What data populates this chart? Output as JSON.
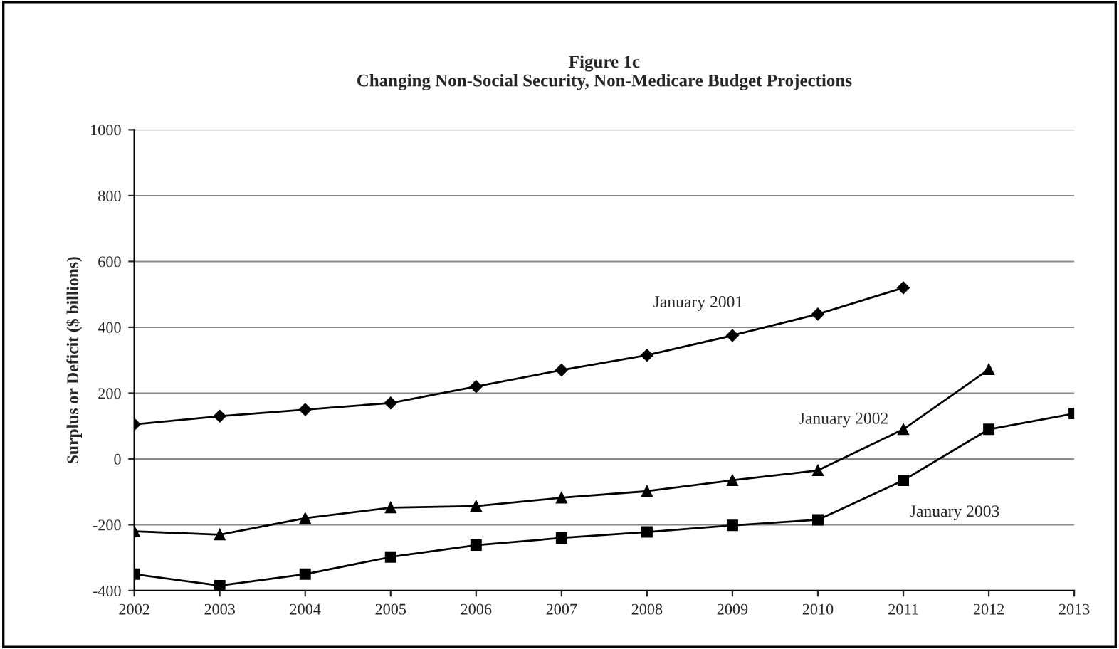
{
  "chart_data": {
    "type": "line",
    "title": "Figure 1c\nChanging Non-Social Security, Non-Medicare Budget Projections",
    "ylabel": "Surplus or Deficit ($ billions)",
    "categories": [
      "2002",
      "2003",
      "2004",
      "2005",
      "2006",
      "2007",
      "2008",
      "2009",
      "2010",
      "2011",
      "2012",
      "2013"
    ],
    "series": [
      {
        "name": "January 2001",
        "color": "#000000",
        "marker": "diamond",
        "values": [
          105,
          130,
          150,
          170,
          220,
          270,
          315,
          375,
          440,
          520,
          null,
          null
        ]
      },
      {
        "name": "January 2002",
        "color": "#000000",
        "marker": "triangle",
        "values": [
          -220,
          -230,
          -180,
          -148,
          -143,
          -118,
          -98,
          -65,
          -35,
          90,
          272,
          null
        ]
      },
      {
        "name": "January 2003",
        "color": "#000000",
        "marker": "square",
        "values": [
          -350,
          -385,
          -350,
          -298,
          -262,
          -240,
          -222,
          -202,
          -185,
          -65,
          90,
          138
        ]
      }
    ],
    "ylim": [
      -400,
      1000
    ],
    "yticks": [
      -400,
      -200,
      0,
      200,
      400,
      600,
      800,
      1000
    ],
    "grid": "y",
    "legend": false,
    "line_style": "solid"
  }
}
